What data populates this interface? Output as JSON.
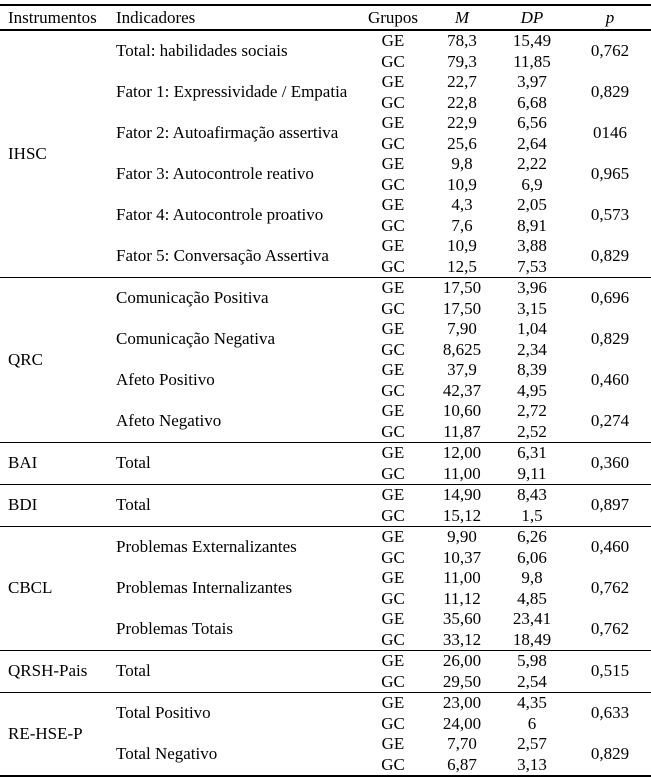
{
  "page": {
    "background_color": "#ffffff",
    "text_color": "#000000",
    "border_color": "#000000"
  },
  "table": {
    "headers": [
      {
        "label": "Instrumentos",
        "italic": false
      },
      {
        "label": "Indicadores",
        "italic": false
      },
      {
        "label": "Grupos",
        "italic": false
      },
      {
        "label": "M",
        "italic": true
      },
      {
        "label": "DP",
        "italic": true
      },
      {
        "label": "p",
        "italic": true
      }
    ],
    "sections": [
      {
        "instrument": "IHSC",
        "indicators": [
          {
            "name": "Total: habilidades sociais",
            "rows": [
              [
                "GE",
                "78,3",
                "15,49"
              ],
              [
                "GC",
                "79,3",
                "11,85"
              ]
            ],
            "p": "0,762"
          },
          {
            "name": "Fator 1: Expressividade / Empatia",
            "rows": [
              [
                "GE",
                "22,7",
                "3,97"
              ],
              [
                "GC",
                "22,8",
                "6,68"
              ]
            ],
            "p": "0,829"
          },
          {
            "name": "Fator 2: Autoafirmação assertiva",
            "rows": [
              [
                "GE",
                "22,9",
                "6,56"
              ],
              [
                "GC",
                "25,6",
                "2,64"
              ]
            ],
            "p": "0146"
          },
          {
            "name": "Fator 3: Autocontrole reativo",
            "rows": [
              [
                "GE",
                "9,8",
                "2,22"
              ],
              [
                "GC",
                "10,9",
                "6,9"
              ]
            ],
            "p": "0,965"
          },
          {
            "name": "Fator 4: Autocontrole proativo",
            "rows": [
              [
                "GE",
                "4,3",
                "2,05"
              ],
              [
                "GC",
                "7,6",
                "8,91"
              ]
            ],
            "p": "0,573"
          },
          {
            "name": "Fator 5: Conversação Assertiva",
            "rows": [
              [
                "GE",
                "10,9",
                "3,88"
              ],
              [
                "GC",
                "12,5",
                "7,53"
              ]
            ],
            "p": "0,829"
          }
        ]
      },
      {
        "instrument": "QRC",
        "indicators": [
          {
            "name": "Comunicação Positiva",
            "rows": [
              [
                "GE",
                "17,50",
                "3,96"
              ],
              [
                "GC",
                "17,50",
                "3,15"
              ]
            ],
            "p": "0,696"
          },
          {
            "name": "Comunicação Negativa",
            "rows": [
              [
                "GE",
                "7,90",
                "1,04"
              ],
              [
                "GC",
                "8,625",
                "2,34"
              ]
            ],
            "p": "0,829"
          },
          {
            "name": "Afeto Positivo",
            "rows": [
              [
                "GE",
                "37,9",
                "8,39"
              ],
              [
                "GC",
                "42,37",
                "4,95"
              ]
            ],
            "p": "0,460"
          },
          {
            "name": "Afeto Negativo",
            "rows": [
              [
                "GE",
                "10,60",
                "2,72"
              ],
              [
                "GC",
                "11,87",
                "2,52"
              ]
            ],
            "p": "0,274"
          }
        ]
      },
      {
        "instrument": "BAI",
        "indicators": [
          {
            "name": "Total",
            "rows": [
              [
                "GE",
                "12,00",
                "6,31"
              ],
              [
                "GC",
                "11,00",
                "9,11"
              ]
            ],
            "p": "0,360"
          }
        ]
      },
      {
        "instrument": "BDI",
        "indicators": [
          {
            "name": "Total",
            "rows": [
              [
                "GE",
                "14,90",
                "8,43"
              ],
              [
                "GC",
                "15,12",
                "1,5"
              ]
            ],
            "p": "0,897"
          }
        ]
      },
      {
        "instrument": "CBCL",
        "indicators": [
          {
            "name": "Problemas Externalizantes",
            "rows": [
              [
                "GE",
                "9,90",
                "6,26"
              ],
              [
                "GC",
                "10,37",
                "6,06"
              ]
            ],
            "p": "0,460"
          },
          {
            "name": "Problemas Internalizantes",
            "rows": [
              [
                "GE",
                "11,00",
                "9,8"
              ],
              [
                "GC",
                "11,12",
                "4,85"
              ]
            ],
            "p": "0,762"
          },
          {
            "name": "Problemas Totais",
            "rows": [
              [
                "GE",
                "35,60",
                "23,41"
              ],
              [
                "GC",
                "33,12",
                "18,49"
              ]
            ],
            "p": "0,762"
          }
        ]
      },
      {
        "instrument": "QRSH-Pais",
        "indicators": [
          {
            "name": "Total",
            "rows": [
              [
                "GE",
                "26,00",
                "5,98"
              ],
              [
                "GC",
                "29,50",
                "2,54"
              ]
            ],
            "p": "0,515"
          }
        ]
      },
      {
        "instrument": "RE-HSE-P",
        "indicators": [
          {
            "name": "Total Positivo",
            "rows": [
              [
                "GE",
                "23,00",
                "4,35"
              ],
              [
                "GC",
                "24,00",
                "6"
              ]
            ],
            "p": "0,633"
          },
          {
            "name": "Total Negativo",
            "rows": [
              [
                "GE",
                "7,70",
                "2,57"
              ],
              [
                "GC",
                "6,87",
                "3,13"
              ]
            ],
            "p": "0,829"
          }
        ]
      }
    ]
  }
}
